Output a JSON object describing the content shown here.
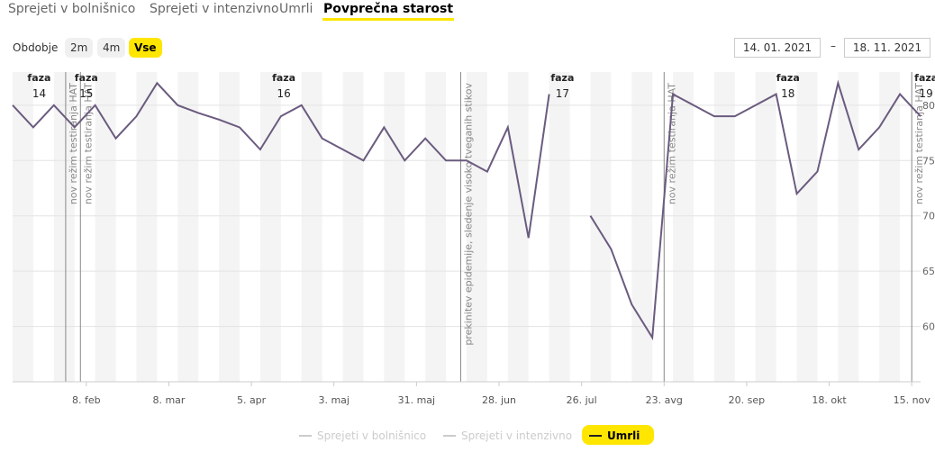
{
  "tabs": [
    {
      "label": "Sprejeti v bolnišnico",
      "active": false
    },
    {
      "label": "Sprejeti v intenzivno",
      "active": false
    },
    {
      "label": "Umrli",
      "active": false
    },
    {
      "label": "Povprečna starost",
      "active": true
    }
  ],
  "period": {
    "label": "Obdobje",
    "options": [
      {
        "label": "2m",
        "active": false
      },
      {
        "label": "4m",
        "active": false
      },
      {
        "label": "Vse",
        "active": true
      }
    ]
  },
  "date_range": {
    "from": "14. 01. 2021",
    "separator": "–",
    "to": "18. 11. 2021"
  },
  "colors": {
    "accent": "#ffe600",
    "line": "#6b5b7f",
    "band": "#f4f4f4",
    "grid": "#e3e3e3"
  },
  "chart_data": {
    "type": "line",
    "x_range": [
      "2021-01-14",
      "2021-11-18"
    ],
    "ylim": [
      55,
      83
    ],
    "y_ticks": [
      60,
      65,
      70,
      75,
      80
    ],
    "x_ticks": [
      {
        "date": "2021-02-08",
        "label": "8. feb"
      },
      {
        "date": "2021-03-08",
        "label": "8. mar"
      },
      {
        "date": "2021-04-05",
        "label": "5. apr"
      },
      {
        "date": "2021-05-03",
        "label": "3. maj"
      },
      {
        "date": "2021-05-31",
        "label": "31. maj"
      },
      {
        "date": "2021-06-28",
        "label": "28. jun"
      },
      {
        "date": "2021-07-26",
        "label": "26. jul"
      },
      {
        "date": "2021-08-23",
        "label": "23. avg"
      },
      {
        "date": "2021-09-20",
        "label": "20. sep"
      },
      {
        "date": "2021-10-18",
        "label": "18. okt"
      },
      {
        "date": "2021-11-15",
        "label": "15. nov"
      }
    ],
    "phases": [
      {
        "label_top": "faza",
        "label_num": "14",
        "start": "2021-01-14"
      },
      {
        "label_top": "faza",
        "label_num": "15",
        "start": "2021-02-01"
      },
      {
        "label_top": "faza",
        "label_num": "16",
        "start": "2021-02-15"
      },
      {
        "label_top": "faza",
        "label_num": "17",
        "start": "2021-06-15"
      },
      {
        "label_top": "faza",
        "label_num": "18",
        "start": "2021-08-23"
      },
      {
        "label_top": "faza",
        "label_num": "19",
        "start": "2021-11-15"
      }
    ],
    "annotations": [
      {
        "date": "2021-02-01",
        "text": "nov režim testiranja HAT"
      },
      {
        "date": "2021-02-06",
        "text": "nov režim testiranja HAT"
      },
      {
        "date": "2021-06-15",
        "text": "prekinitev epidemije, sledenje visoko tveganih stikov"
      },
      {
        "date": "2021-08-23",
        "text": "nov režim testiranja HAT"
      },
      {
        "date": "2021-11-15",
        "text": "nov režim testiranja HAT"
      }
    ],
    "series": [
      {
        "name": "Sprejeti v bolnišnico",
        "visible": false,
        "points": []
      },
      {
        "name": "Sprejeti v intenzivno",
        "visible": false,
        "points": []
      },
      {
        "name": "Umrli",
        "visible": true,
        "points": [
          {
            "x": "2021-01-14",
            "y": 80
          },
          {
            "x": "2021-01-21",
            "y": 78
          },
          {
            "x": "2021-01-28",
            "y": 80
          },
          {
            "x": "2021-02-04",
            "y": 78
          },
          {
            "x": "2021-02-11",
            "y": 80
          },
          {
            "x": "2021-02-18",
            "y": 77
          },
          {
            "x": "2021-02-25",
            "y": 79
          },
          {
            "x": "2021-03-04",
            "y": 82
          },
          {
            "x": "2021-03-11",
            "y": 80
          },
          {
            "x": "2021-03-18",
            "y": 79.3
          },
          {
            "x": "2021-03-25",
            "y": 78.7
          },
          {
            "x": "2021-04-01",
            "y": 78
          },
          {
            "x": "2021-04-08",
            "y": 76
          },
          {
            "x": "2021-04-15",
            "y": 79
          },
          {
            "x": "2021-04-22",
            "y": 80
          },
          {
            "x": "2021-04-29",
            "y": 77
          },
          {
            "x": "2021-05-06",
            "y": 76
          },
          {
            "x": "2021-05-13",
            "y": 75
          },
          {
            "x": "2021-05-20",
            "y": 78
          },
          {
            "x": "2021-05-27",
            "y": 75
          },
          {
            "x": "2021-06-03",
            "y": 77
          },
          {
            "x": "2021-06-10",
            "y": 75
          },
          {
            "x": "2021-06-17",
            "y": 75
          },
          {
            "x": "2021-06-24",
            "y": 74
          },
          {
            "x": "2021-07-01",
            "y": 78
          },
          {
            "x": "2021-07-08",
            "y": 68
          },
          {
            "x": "2021-07-15",
            "y": 81
          },
          {
            "x": "2021-07-22",
            "y": null
          },
          {
            "x": "2021-07-29",
            "y": 70
          },
          {
            "x": "2021-08-05",
            "y": 67
          },
          {
            "x": "2021-08-12",
            "y": 62
          },
          {
            "x": "2021-08-19",
            "y": 59
          },
          {
            "x": "2021-08-26",
            "y": 81
          },
          {
            "x": "2021-09-02",
            "y": 80
          },
          {
            "x": "2021-09-09",
            "y": 79
          },
          {
            "x": "2021-09-16",
            "y": 79
          },
          {
            "x": "2021-09-23",
            "y": 80
          },
          {
            "x": "2021-09-30",
            "y": 81
          },
          {
            "x": "2021-10-07",
            "y": 72
          },
          {
            "x": "2021-10-14",
            "y": 74
          },
          {
            "x": "2021-10-21",
            "y": 82
          },
          {
            "x": "2021-10-28",
            "y": 76
          },
          {
            "x": "2021-11-04",
            "y": 78
          },
          {
            "x": "2021-11-11",
            "y": 81
          },
          {
            "x": "2021-11-18",
            "y": 79
          }
        ]
      }
    ],
    "legend_placement": "bottom-center",
    "grid": true
  }
}
